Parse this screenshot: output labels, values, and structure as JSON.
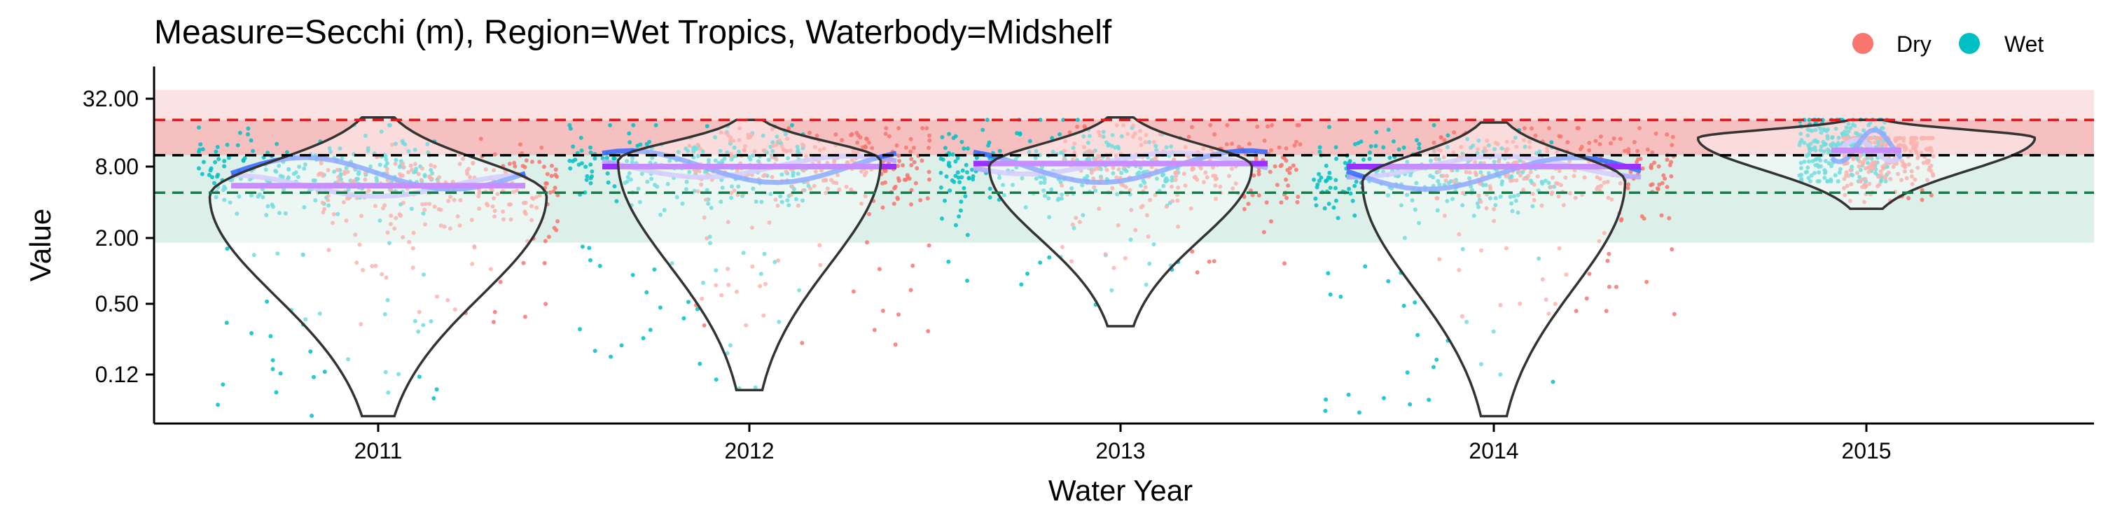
{
  "chart_data": {
    "type": "scatter",
    "title": "Measure=Secchi (m), Region=Wet Tropics, Waterbody=Midshelf",
    "xlabel": "Water Year",
    "ylabel": "Value",
    "y_scale": "log2",
    "ylim": [
      0.05,
      50
    ],
    "y_ticks": [
      0.12,
      0.5,
      2,
      8,
      32
    ],
    "y_tick_labels": [
      "0.12",
      "0.50",
      "2.00",
      "8.00",
      "32.00"
    ],
    "categories": [
      "2011",
      "2012",
      "2013",
      "2014",
      "2015"
    ],
    "legend": {
      "position": "top-right",
      "entries": [
        {
          "label": "Dry",
          "color": "#F8766D"
        },
        {
          "label": "Wet",
          "color": "#00BFC4"
        }
      ]
    },
    "colors": {
      "dry": "#F8766D",
      "wet": "#00BFC4",
      "band_red_light": "#FCE3E3",
      "band_red_mid": "#F7C0C0",
      "band_green": "#DCEFE8",
      "line_red": "#E31A1C",
      "line_black": "#000000",
      "line_green": "#1B7A4A",
      "smooth_wet": "#3366FF",
      "smooth_dry": "#B3A6FF",
      "median": "#9B30FF"
    },
    "bands": [
      {
        "from": 1.8,
        "to": 4.8,
        "color": "band_green"
      },
      {
        "from": 4.8,
        "to": 10,
        "color": "band_green"
      },
      {
        "from": 10,
        "to": 20,
        "color": "band_red_mid"
      },
      {
        "from": 20,
        "to": 36,
        "color": "band_red_light"
      }
    ],
    "reference_lines": [
      {
        "value": 20,
        "color": "line_red"
      },
      {
        "value": 10,
        "color": "line_black"
      },
      {
        "value": 4.8,
        "color": "line_green"
      }
    ],
    "years": [
      {
        "year": "2011",
        "wet_range": [
          0.06,
          18
        ],
        "dry_range": [
          0.35,
          16
        ],
        "dry_median": 5.5,
        "wet_median": 7,
        "median_line": 5.5,
        "violin": {
          "min": 0.06,
          "max": 21,
          "peak": 4.5,
          "width": 0.45
        }
      },
      {
        "year": "2012",
        "wet_range": [
          0.1,
          18
        ],
        "dry_range": [
          0.2,
          17
        ],
        "dry_median": 8,
        "wet_median": 8,
        "median_line": 8,
        "violin": {
          "min": 0.1,
          "max": 20,
          "peak": 9,
          "width": 0.35
        }
      },
      {
        "year": "2013",
        "wet_range": [
          0.4,
          20
        ],
        "dry_range": [
          0.9,
          18
        ],
        "dry_median": 8.5,
        "wet_median": 8,
        "median_line": 8.5,
        "violin": {
          "min": 0.35,
          "max": 21,
          "peak": 8,
          "width": 0.35
        }
      },
      {
        "year": "2014",
        "wet_range": [
          0.06,
          18
        ],
        "dry_range": [
          0.4,
          17
        ],
        "dry_median": 8,
        "wet_median": 7,
        "median_line": 8,
        "violin": {
          "min": 0.06,
          "max": 19,
          "peak": 6,
          "width": 0.35
        }
      },
      {
        "year": "2015",
        "wet_range": [
          6,
          20
        ],
        "dry_range": [
          4,
          14
        ],
        "dry_median": 11,
        "wet_median": 12,
        "median_line": 11,
        "violin": {
          "min": 3.5,
          "max": 20,
          "peak": 14,
          "width": 0.45
        }
      }
    ]
  }
}
